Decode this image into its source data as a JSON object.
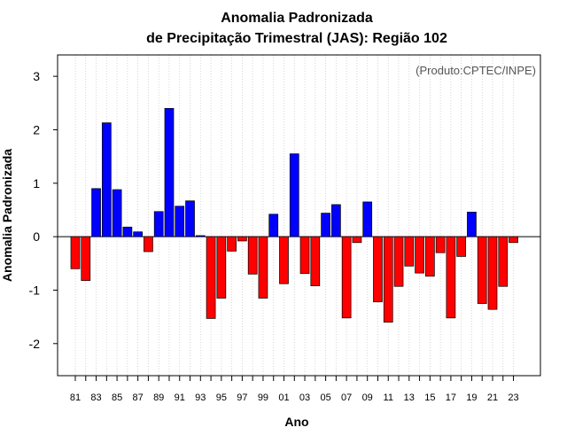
{
  "chart_data": {
    "type": "bar",
    "title": [
      "Anomalia Padronizada",
      "de Precipitação Trimestral (JAS): Região 102"
    ],
    "credit": "(Produto:CPTEC/INPE)",
    "xlabel": "Ano",
    "ylabel": "Anomalia Padronizada",
    "ylim": [
      -2.6,
      3.4
    ],
    "yticks": [
      -2,
      -1,
      0,
      1,
      2,
      3
    ],
    "xtick_labels": [
      "81",
      "83",
      "85",
      "87",
      "89",
      "91",
      "93",
      "95",
      "97",
      "99",
      "01",
      "03",
      "05",
      "07",
      "09",
      "11",
      "13",
      "15",
      "17",
      "19",
      "21",
      "23"
    ],
    "categories": [
      "1981",
      "1982",
      "1983",
      "1984",
      "1985",
      "1986",
      "1987",
      "1988",
      "1989",
      "1990",
      "1991",
      "1992",
      "1993",
      "1994",
      "1995",
      "1996",
      "1997",
      "1998",
      "1999",
      "2000",
      "2001",
      "2002",
      "2003",
      "2004",
      "2005",
      "2006",
      "2007",
      "2008",
      "2009",
      "2010",
      "2011",
      "2012",
      "2013",
      "2014",
      "2015",
      "2016",
      "2017",
      "2018",
      "2019",
      "2020",
      "2021",
      "2022",
      "2023"
    ],
    "values": [
      -0.6,
      -0.82,
      0.9,
      2.13,
      0.88,
      0.18,
      0.09,
      -0.28,
      0.47,
      2.4,
      0.57,
      0.67,
      0.02,
      -1.53,
      -1.15,
      -0.27,
      -0.08,
      -0.7,
      -1.15,
      0.42,
      -0.88,
      1.55,
      -0.69,
      -0.92,
      0.44,
      0.6,
      -1.52,
      -0.11,
      0.65,
      -1.22,
      -1.6,
      -0.93,
      -0.55,
      -0.68,
      -0.74,
      -0.3,
      -1.52,
      -0.37,
      0.46,
      -1.25,
      -1.36,
      -0.93,
      -0.11
    ],
    "colors": {
      "positive": "#0000ff",
      "negative": "#ff0000",
      "grid": "#cccccc",
      "axis": "#000000"
    },
    "grid": true
  }
}
